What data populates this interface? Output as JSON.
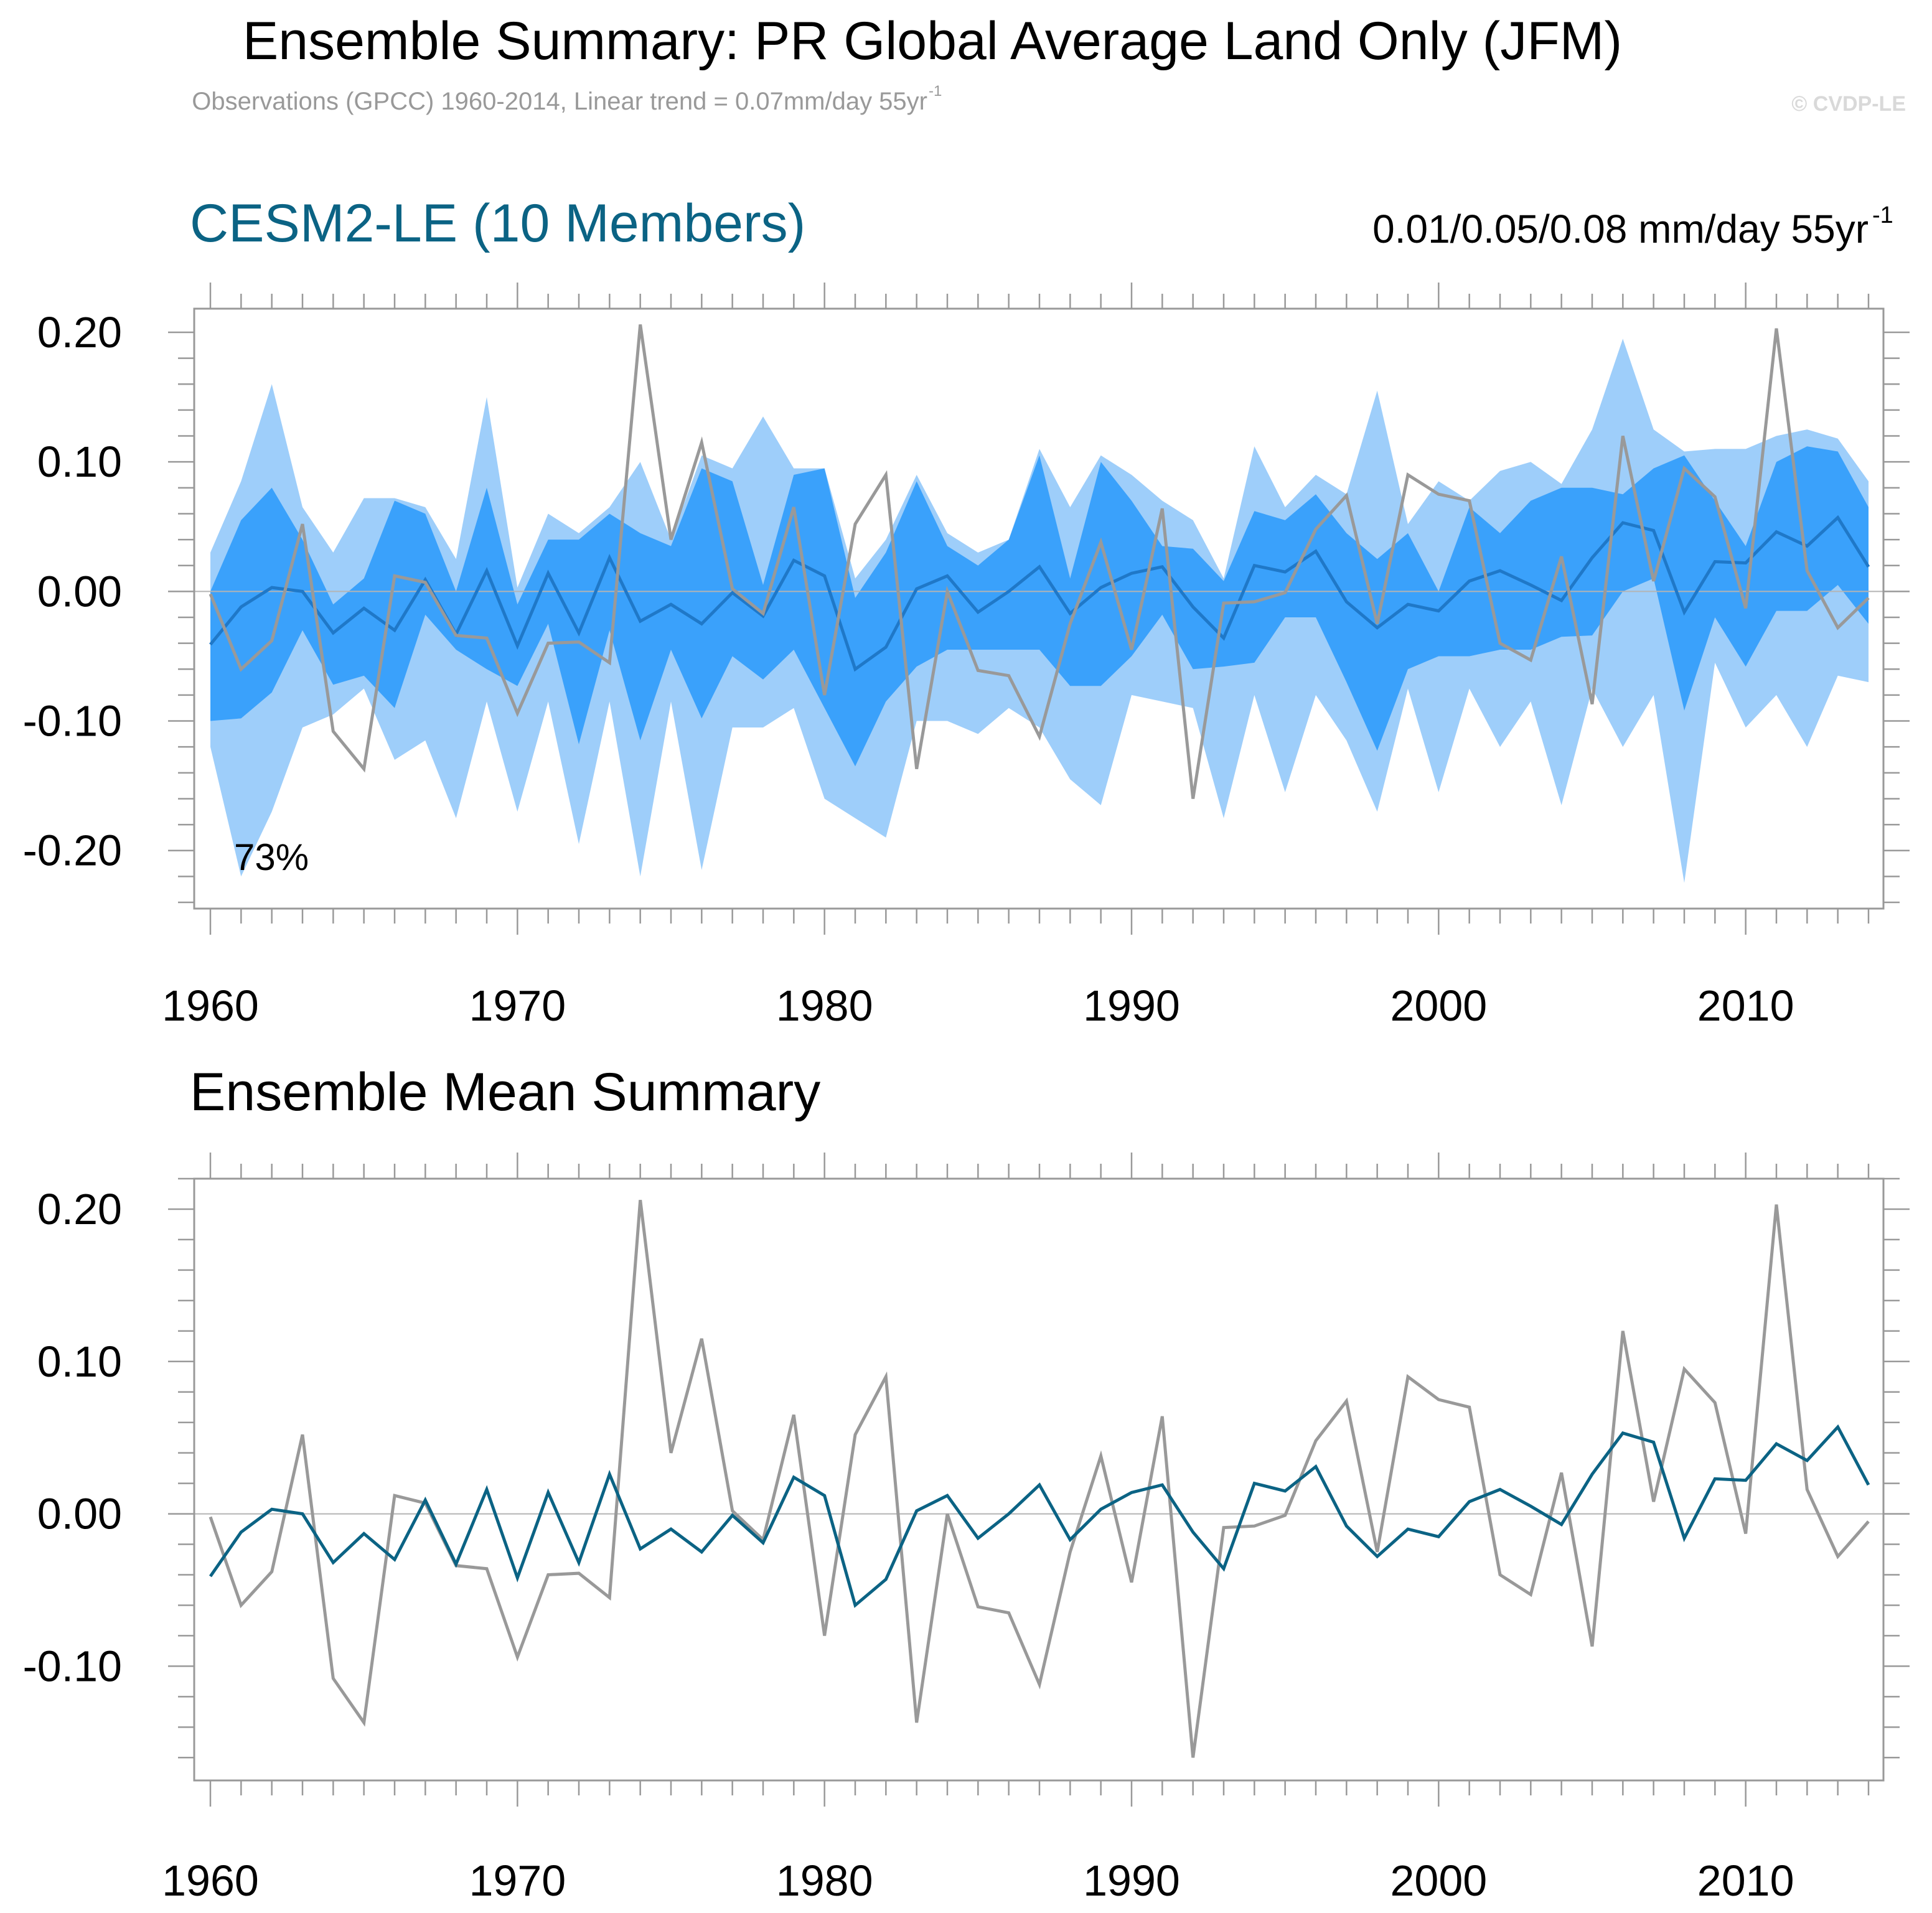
{
  "page": {
    "title": "Ensemble Summary: PR Global Average Land Only (JFM)",
    "subtitle": "Observations (GPCC) 1960-2014, Linear trend = 0.07mm/day 55yr",
    "subtitle_sup": "-1",
    "copyright": "© CVDP-LE"
  },
  "colors": {
    "outer_band": "#9ecefa",
    "inner_band": "#3aa1fb",
    "ens_mean_top": "#1f78c8",
    "ens_mean_bottom": "#0b6384",
    "obs": "#999999",
    "model_label": "#0b6384",
    "zero_line": "#b4b4b4"
  },
  "top_panel": {
    "label": "CESM2-LE (10 Members)",
    "trend_text": "0.01/0.05/0.08 mm/day 55yr",
    "trend_sup": "-1",
    "percent": "73%"
  },
  "bottom_panel": {
    "label": "Ensemble Mean Summary"
  },
  "chart_data": [
    {
      "type": "area",
      "xlim": [
        1960,
        2014
      ],
      "ylim": [
        -0.24,
        0.2
      ],
      "xticks": [
        "1960",
        "1970",
        "1980",
        "1990",
        "2000",
        "2010"
      ],
      "yticks": [
        "0.20",
        "0.10",
        "0.00",
        "-0.10",
        "-0.20"
      ],
      "x": [
        1960,
        1961,
        1962,
        1963,
        1964,
        1965,
        1966,
        1967,
        1968,
        1969,
        1970,
        1971,
        1972,
        1973,
        1974,
        1975,
        1976,
        1977,
        1978,
        1979,
        1980,
        1981,
        1982,
        1983,
        1984,
        1985,
        1986,
        1987,
        1988,
        1989,
        1990,
        1991,
        1992,
        1993,
        1994,
        1995,
        1996,
        1997,
        1998,
        1999,
        2000,
        2001,
        2002,
        2003,
        2004,
        2005,
        2006,
        2007,
        2008,
        2009,
        2010,
        2011,
        2012,
        2013,
        2014
      ],
      "series": [
        {
          "kind": "band",
          "lower": [
            -0.12,
            -0.22,
            -0.17,
            -0.105,
            -0.095,
            -0.075,
            -0.13,
            -0.115,
            -0.175,
            -0.085,
            -0.17,
            -0.085,
            -0.195,
            -0.085,
            -0.22,
            -0.085,
            -0.215,
            -0.105,
            -0.105,
            -0.09,
            -0.16,
            -0.175,
            -0.19,
            -0.1,
            -0.1,
            -0.11,
            -0.09,
            -0.105,
            -0.145,
            -0.165,
            -0.08,
            -0.085,
            -0.09,
            -0.175,
            -0.08,
            -0.155,
            -0.08,
            -0.115,
            -0.17,
            -0.075,
            -0.155,
            -0.075,
            -0.12,
            -0.085,
            -0.165,
            -0.075,
            -0.12,
            -0.08,
            -0.225,
            -0.055,
            -0.105,
            -0.08,
            -0.12,
            -0.065,
            -0.07
          ],
          "upper": [
            0.03,
            0.085,
            0.16,
            0.065,
            0.03,
            0.072,
            0.072,
            0.065,
            0.025,
            0.15,
            0.003,
            0.06,
            0.045,
            0.065,
            0.1,
            0.04,
            0.105,
            0.095,
            0.135,
            0.095,
            0.095,
            0.01,
            0.04,
            0.09,
            0.045,
            0.03,
            0.04,
            0.11,
            0.065,
            0.105,
            0.09,
            0.07,
            0.055,
            0.01,
            0.112,
            0.065,
            0.09,
            0.075,
            0.155,
            0.052,
            0.085,
            0.07,
            0.093,
            0.1,
            0.083,
            0.125,
            0.195,
            0.125,
            0.108,
            0.11,
            0.11,
            0.12,
            0.125,
            0.118,
            0.085
          ]
        },
        {
          "kind": "band",
          "lower": [
            -0.1,
            -0.098,
            -0.078,
            -0.03,
            -0.072,
            -0.065,
            -0.09,
            -0.018,
            -0.045,
            -0.06,
            -0.073,
            -0.025,
            -0.118,
            -0.03,
            -0.115,
            -0.045,
            -0.098,
            -0.05,
            -0.068,
            -0.045,
            -0.09,
            -0.135,
            -0.085,
            -0.058,
            -0.045,
            -0.045,
            -0.045,
            -0.045,
            -0.073,
            -0.073,
            -0.05,
            -0.018,
            -0.06,
            -0.058,
            -0.055,
            -0.02,
            -0.02,
            -0.07,
            -0.123,
            -0.06,
            -0.05,
            -0.05,
            -0.045,
            -0.045,
            -0.035,
            -0.034,
            -0.0,
            0.01,
            -0.092,
            -0.02,
            -0.058,
            -0.015,
            -0.015,
            0.005,
            -0.025
          ],
          "upper": [
            0.0,
            0.055,
            0.08,
            0.04,
            -0.01,
            0.01,
            0.07,
            0.06,
            0.0,
            0.08,
            -0.01,
            0.04,
            0.04,
            0.06,
            0.045,
            0.035,
            0.095,
            0.085,
            0.005,
            0.09,
            0.095,
            -0.005,
            0.03,
            0.085,
            0.035,
            0.02,
            0.04,
            0.105,
            0.01,
            0.1,
            0.07,
            0.035,
            0.033,
            0.008,
            0.062,
            0.055,
            0.075,
            0.045,
            0.025,
            0.045,
            0.0,
            0.065,
            0.045,
            0.07,
            0.08,
            0.08,
            0.075,
            0.095,
            0.105,
            0.07,
            0.035,
            0.1,
            0.112,
            0.108,
            0.065
          ]
        },
        {
          "kind": "line",
          "name": "ensemble mean",
          "values": [
            -0.041,
            -0.012,
            0.003,
            0.0,
            -0.032,
            -0.013,
            -0.03,
            0.009,
            -0.033,
            0.016,
            -0.042,
            0.014,
            -0.032,
            0.026,
            -0.023,
            -0.01,
            -0.025,
            -0.001,
            -0.019,
            0.024,
            0.012,
            -0.06,
            -0.043,
            0.002,
            0.012,
            -0.016,
            0.0,
            0.019,
            -0.017,
            0.003,
            0.014,
            0.019,
            -0.012,
            -0.036,
            0.02,
            0.015,
            0.031,
            -0.008,
            -0.028,
            -0.01,
            -0.015,
            0.008,
            0.016,
            0.005,
            -0.007,
            0.026,
            0.053,
            0.047,
            -0.016,
            0.023,
            0.022,
            0.046,
            0.035,
            0.057,
            0.019
          ]
        },
        {
          "kind": "line",
          "name": "observations",
          "values": [
            -0.002,
            -0.06,
            -0.038,
            0.052,
            -0.108,
            -0.137,
            0.012,
            0.007,
            -0.034,
            -0.036,
            -0.094,
            -0.04,
            -0.039,
            -0.055,
            0.206,
            0.04,
            0.115,
            0.002,
            -0.017,
            0.065,
            -0.08,
            0.052,
            0.09,
            -0.137,
            0.0,
            -0.061,
            -0.065,
            -0.112,
            -0.025,
            0.038,
            -0.045,
            0.064,
            -0.16,
            -0.009,
            -0.008,
            -0.001,
            0.048,
            0.074,
            -0.025,
            0.09,
            0.075,
            0.07,
            -0.04,
            -0.053,
            0.027,
            -0.087,
            0.12,
            0.008,
            0.095,
            0.073,
            -0.013,
            0.203,
            0.016,
            -0.028,
            -0.005
          ]
        }
      ]
    },
    {
      "type": "line",
      "xlim": [
        1960,
        2014
      ],
      "ylim": [
        -0.175,
        0.22
      ],
      "xticks": [
        "1960",
        "1970",
        "1980",
        "1990",
        "2000",
        "2010"
      ],
      "yticks": [
        "0.20",
        "0.10",
        "0.00",
        "-0.10"
      ],
      "x": [
        1960,
        1961,
        1962,
        1963,
        1964,
        1965,
        1966,
        1967,
        1968,
        1969,
        1970,
        1971,
        1972,
        1973,
        1974,
        1975,
        1976,
        1977,
        1978,
        1979,
        1980,
        1981,
        1982,
        1983,
        1984,
        1985,
        1986,
        1987,
        1988,
        1989,
        1990,
        1991,
        1992,
        1993,
        1994,
        1995,
        1996,
        1997,
        1998,
        1999,
        2000,
        2001,
        2002,
        2003,
        2004,
        2005,
        2006,
        2007,
        2008,
        2009,
        2010,
        2011,
        2012,
        2013,
        2014
      ],
      "series": [
        {
          "name": "observations",
          "values": [
            -0.002,
            -0.06,
            -0.038,
            0.052,
            -0.108,
            -0.137,
            0.012,
            0.007,
            -0.034,
            -0.036,
            -0.094,
            -0.04,
            -0.039,
            -0.055,
            0.206,
            0.04,
            0.115,
            0.002,
            -0.017,
            0.065,
            -0.08,
            0.052,
            0.09,
            -0.137,
            0.0,
            -0.061,
            -0.065,
            -0.112,
            -0.025,
            0.038,
            -0.045,
            0.064,
            -0.16,
            -0.009,
            -0.008,
            -0.001,
            0.048,
            0.074,
            -0.025,
            0.09,
            0.075,
            0.07,
            -0.04,
            -0.053,
            0.027,
            -0.087,
            0.12,
            0.008,
            0.095,
            0.073,
            -0.013,
            0.203,
            0.016,
            -0.028,
            -0.005
          ]
        },
        {
          "name": "ensemble mean",
          "values": [
            -0.041,
            -0.012,
            0.003,
            0.0,
            -0.032,
            -0.013,
            -0.03,
            0.009,
            -0.033,
            0.016,
            -0.042,
            0.014,
            -0.032,
            0.026,
            -0.023,
            -0.01,
            -0.025,
            -0.001,
            -0.019,
            0.024,
            0.012,
            -0.06,
            -0.043,
            0.002,
            0.012,
            -0.016,
            0.0,
            0.019,
            -0.017,
            0.003,
            0.014,
            0.019,
            -0.012,
            -0.036,
            0.02,
            0.015,
            0.031,
            -0.008,
            -0.028,
            -0.01,
            -0.015,
            0.008,
            0.016,
            0.005,
            -0.007,
            0.026,
            0.053,
            0.047,
            -0.016,
            0.023,
            0.022,
            0.046,
            0.035,
            0.057,
            0.019
          ]
        }
      ]
    }
  ]
}
